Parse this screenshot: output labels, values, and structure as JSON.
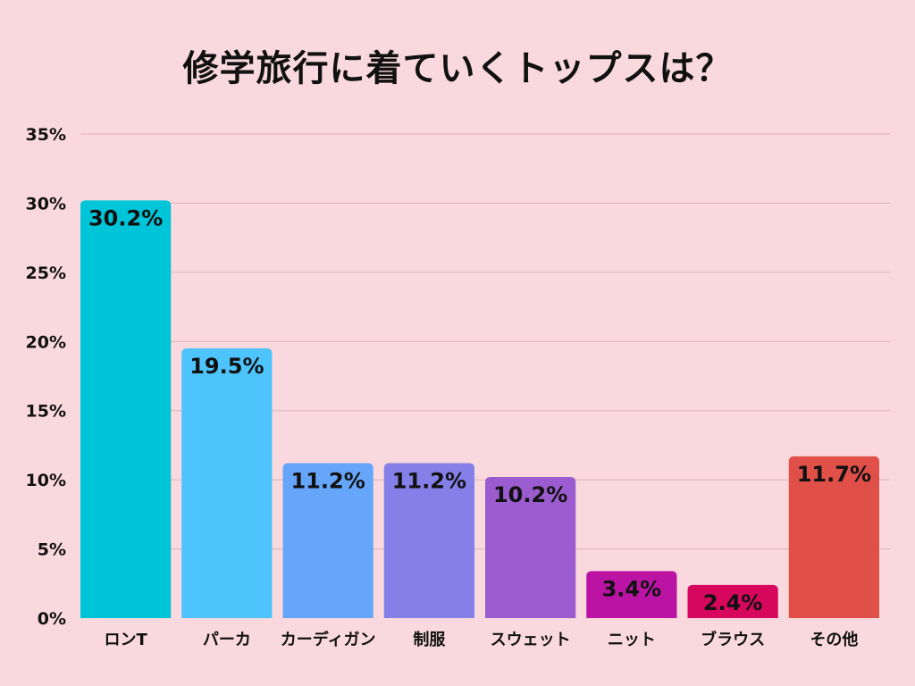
{
  "chart_data": {
    "type": "bar",
    "title": "修学旅行に着ていくトップスは？",
    "categories": [
      "ロンT",
      "パーカ",
      "カーディガン",
      "制服",
      "スウェット",
      "ニット",
      "ブラウス",
      "その他"
    ],
    "values": [
      30.2,
      19.5,
      11.2,
      11.2,
      10.2,
      3.4,
      2.4,
      11.7
    ],
    "value_labels": [
      "30.2%",
      "19.5%",
      "11.2%",
      "11.2%",
      "10.2%",
      "3.4%",
      "2.4%",
      "11.7%"
    ],
    "colors": [
      "#00c4d8",
      "#4dc4fc",
      "#66a6fa",
      "#8480e8",
      "#9b5ccf",
      "#bb14a4",
      "#d8075e",
      "#e05048"
    ],
    "ylim": [
      0,
      35
    ],
    "yticks": [
      0,
      5,
      10,
      15,
      20,
      25,
      30,
      35
    ],
    "ytick_labels": [
      "0%",
      "5%",
      "10%",
      "15%",
      "20%",
      "25%",
      "30%",
      "35%"
    ],
    "xlabel": "",
    "ylabel": "",
    "grid": true,
    "background": "#fad9de",
    "grid_color": "#d9b4ba"
  }
}
